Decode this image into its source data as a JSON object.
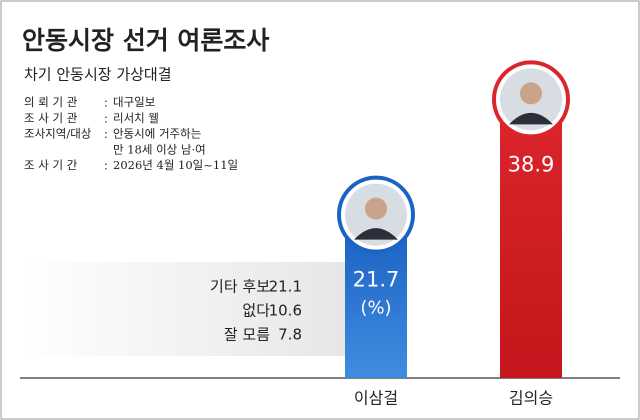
{
  "chart_data": {
    "type": "bar",
    "title": "안동시장 선거 여론조사",
    "subtitle": "차기 안동시장 가상대결",
    "info": [
      {
        "label": "의 뢰 기 관",
        "value": [
          "대구일보"
        ]
      },
      {
        "label": "조 사 기 관",
        "value": [
          "리서치 웰"
        ]
      },
      {
        "label": "조사지역/대상",
        "value": [
          "안동시에 거주하는",
          "만 18세 이상 남·여"
        ]
      },
      {
        "label": "조 사 기 간",
        "value": [
          "2026년 4월 10일~11일"
        ]
      }
    ],
    "separator": ":",
    "categories": [
      "이삼걸",
      "김의승"
    ],
    "series": [
      {
        "name": "지지율",
        "colors": [
          "#1d63c4",
          "#d9252b"
        ],
        "values": [
          21.7,
          38.9
        ]
      }
    ],
    "unit_label": "(%)",
    "others": [
      {
        "name": "기타 후보",
        "value": 21.1
      },
      {
        "name": "없다",
        "value": 10.6
      },
      {
        "name": "잘 모름",
        "value": 7.8
      }
    ]
  }
}
